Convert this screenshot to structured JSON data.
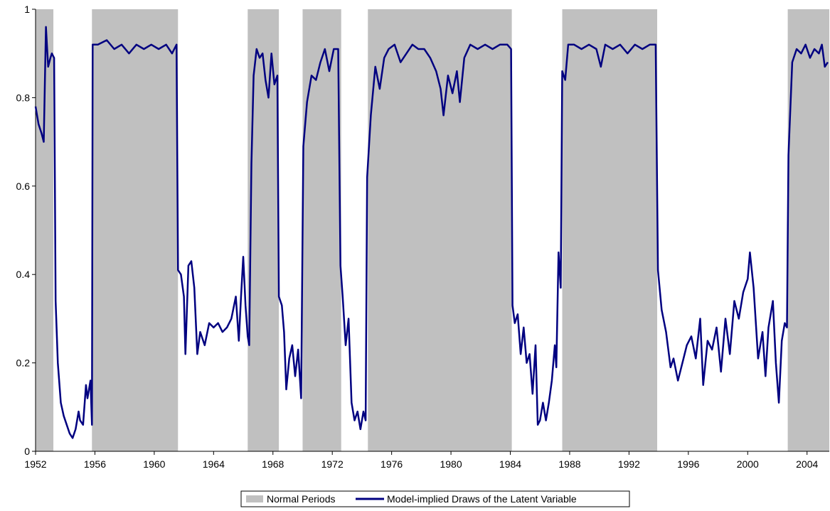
{
  "chart_data": {
    "type": "line",
    "title": "",
    "xlabel": "",
    "ylabel": "",
    "xlim": [
      1952,
      2005.5
    ],
    "ylim": [
      0,
      1
    ],
    "x_ticks": [
      1952,
      1956,
      1960,
      1964,
      1968,
      1972,
      1976,
      1980,
      1984,
      1988,
      1992,
      1996,
      2000,
      2004
    ],
    "x_tick_labels": [
      "1952",
      "1956",
      "1960",
      "1964",
      "1968",
      "1972",
      "1976",
      "1980",
      "1984",
      "1988",
      "1992",
      "1996",
      "2000",
      "2004"
    ],
    "y_ticks": [
      0,
      0.2,
      0.4,
      0.6,
      0.8,
      1
    ],
    "y_tick_labels": [
      "0",
      "0.2",
      "0.4",
      "0.6",
      "0.8",
      "1"
    ],
    "grid": false,
    "legend_position": "bottom-center",
    "shaded_series": {
      "name": "Normal Periods",
      "color": "#c0c0c0",
      "periods": [
        [
          1952.0,
          1953.2
        ],
        [
          1955.8,
          1961.6
        ],
        [
          1966.3,
          1968.4
        ],
        [
          1970.0,
          1972.6
        ],
        [
          1974.4,
          1984.1
        ],
        [
          1987.5,
          1993.9
        ],
        [
          2002.7,
          2005.5
        ]
      ]
    },
    "series": [
      {
        "name": "Model-implied Draws of the Latent Variable",
        "color": "#000080",
        "points": [
          [
            1952.0,
            0.78
          ],
          [
            1952.2,
            0.74
          ],
          [
            1952.4,
            0.72
          ],
          [
            1952.55,
            0.7
          ],
          [
            1952.7,
            0.96
          ],
          [
            1952.85,
            0.87
          ],
          [
            1953.0,
            0.89
          ],
          [
            1953.1,
            0.9
          ],
          [
            1953.25,
            0.89
          ],
          [
            1953.35,
            0.34
          ],
          [
            1953.5,
            0.2
          ],
          [
            1953.7,
            0.11
          ],
          [
            1953.9,
            0.08
          ],
          [
            1954.1,
            0.06
          ],
          [
            1954.3,
            0.04
          ],
          [
            1954.5,
            0.03
          ],
          [
            1954.7,
            0.05
          ],
          [
            1954.9,
            0.09
          ],
          [
            1955.0,
            0.07
          ],
          [
            1955.2,
            0.06
          ],
          [
            1955.4,
            0.15
          ],
          [
            1955.5,
            0.12
          ],
          [
            1955.7,
            0.16
          ],
          [
            1955.8,
            0.06
          ],
          [
            1955.85,
            0.92
          ],
          [
            1956.2,
            0.92
          ],
          [
            1956.8,
            0.93
          ],
          [
            1957.3,
            0.91
          ],
          [
            1957.8,
            0.92
          ],
          [
            1958.3,
            0.9
          ],
          [
            1958.8,
            0.92
          ],
          [
            1959.3,
            0.91
          ],
          [
            1959.8,
            0.92
          ],
          [
            1960.3,
            0.91
          ],
          [
            1960.8,
            0.92
          ],
          [
            1961.2,
            0.9
          ],
          [
            1961.5,
            0.92
          ],
          [
            1961.6,
            0.41
          ],
          [
            1961.8,
            0.4
          ],
          [
            1962.0,
            0.35
          ],
          [
            1962.1,
            0.22
          ],
          [
            1962.3,
            0.42
          ],
          [
            1962.5,
            0.43
          ],
          [
            1962.7,
            0.37
          ],
          [
            1962.9,
            0.22
          ],
          [
            1963.1,
            0.27
          ],
          [
            1963.4,
            0.24
          ],
          [
            1963.7,
            0.29
          ],
          [
            1964.0,
            0.28
          ],
          [
            1964.3,
            0.29
          ],
          [
            1964.6,
            0.27
          ],
          [
            1964.9,
            0.28
          ],
          [
            1965.2,
            0.3
          ],
          [
            1965.5,
            0.35
          ],
          [
            1965.7,
            0.25
          ],
          [
            1965.85,
            0.35
          ],
          [
            1966.0,
            0.44
          ],
          [
            1966.15,
            0.33
          ],
          [
            1966.3,
            0.26
          ],
          [
            1966.4,
            0.24
          ],
          [
            1966.55,
            0.65
          ],
          [
            1966.7,
            0.85
          ],
          [
            1966.9,
            0.91
          ],
          [
            1967.1,
            0.89
          ],
          [
            1967.3,
            0.9
          ],
          [
            1967.5,
            0.84
          ],
          [
            1967.7,
            0.8
          ],
          [
            1967.9,
            0.9
          ],
          [
            1968.1,
            0.83
          ],
          [
            1968.3,
            0.85
          ],
          [
            1968.4,
            0.35
          ],
          [
            1968.6,
            0.33
          ],
          [
            1968.75,
            0.27
          ],
          [
            1968.9,
            0.14
          ],
          [
            1969.1,
            0.21
          ],
          [
            1969.3,
            0.24
          ],
          [
            1969.5,
            0.17
          ],
          [
            1969.7,
            0.23
          ],
          [
            1969.9,
            0.12
          ],
          [
            1970.05,
            0.69
          ],
          [
            1970.3,
            0.79
          ],
          [
            1970.6,
            0.85
          ],
          [
            1970.9,
            0.84
          ],
          [
            1971.2,
            0.88
          ],
          [
            1971.5,
            0.91
          ],
          [
            1971.8,
            0.86
          ],
          [
            1972.1,
            0.91
          ],
          [
            1972.4,
            0.91
          ],
          [
            1972.55,
            0.42
          ],
          [
            1972.7,
            0.35
          ],
          [
            1972.9,
            0.24
          ],
          [
            1973.1,
            0.3
          ],
          [
            1973.3,
            0.11
          ],
          [
            1973.5,
            0.07
          ],
          [
            1973.7,
            0.09
          ],
          [
            1973.9,
            0.05
          ],
          [
            1974.1,
            0.09
          ],
          [
            1974.25,
            0.07
          ],
          [
            1974.35,
            0.62
          ],
          [
            1974.6,
            0.76
          ],
          [
            1974.9,
            0.87
          ],
          [
            1975.2,
            0.82
          ],
          [
            1975.5,
            0.89
          ],
          [
            1975.8,
            0.91
          ],
          [
            1976.2,
            0.92
          ],
          [
            1976.6,
            0.88
          ],
          [
            1977.0,
            0.9
          ],
          [
            1977.4,
            0.92
          ],
          [
            1977.8,
            0.91
          ],
          [
            1978.2,
            0.91
          ],
          [
            1978.6,
            0.89
          ],
          [
            1979.0,
            0.86
          ],
          [
            1979.3,
            0.82
          ],
          [
            1979.5,
            0.76
          ],
          [
            1979.8,
            0.85
          ],
          [
            1980.1,
            0.81
          ],
          [
            1980.4,
            0.86
          ],
          [
            1980.6,
            0.79
          ],
          [
            1980.9,
            0.89
          ],
          [
            1981.3,
            0.92
          ],
          [
            1981.8,
            0.91
          ],
          [
            1982.3,
            0.92
          ],
          [
            1982.8,
            0.91
          ],
          [
            1983.3,
            0.92
          ],
          [
            1983.8,
            0.92
          ],
          [
            1984.05,
            0.91
          ],
          [
            1984.15,
            0.33
          ],
          [
            1984.3,
            0.29
          ],
          [
            1984.5,
            0.31
          ],
          [
            1984.7,
            0.22
          ],
          [
            1984.9,
            0.28
          ],
          [
            1985.1,
            0.2
          ],
          [
            1985.3,
            0.22
          ],
          [
            1985.5,
            0.13
          ],
          [
            1985.7,
            0.24
          ],
          [
            1985.85,
            0.06
          ],
          [
            1986.0,
            0.07
          ],
          [
            1986.2,
            0.11
          ],
          [
            1986.4,
            0.07
          ],
          [
            1986.6,
            0.11
          ],
          [
            1986.8,
            0.16
          ],
          [
            1987.0,
            0.24
          ],
          [
            1987.1,
            0.19
          ],
          [
            1987.25,
            0.45
          ],
          [
            1987.4,
            0.37
          ],
          [
            1987.5,
            0.86
          ],
          [
            1987.7,
            0.84
          ],
          [
            1987.9,
            0.92
          ],
          [
            1988.3,
            0.92
          ],
          [
            1988.8,
            0.91
          ],
          [
            1989.3,
            0.92
          ],
          [
            1989.8,
            0.91
          ],
          [
            1990.1,
            0.87
          ],
          [
            1990.4,
            0.92
          ],
          [
            1990.9,
            0.91
          ],
          [
            1991.4,
            0.92
          ],
          [
            1991.9,
            0.9
          ],
          [
            1992.4,
            0.92
          ],
          [
            1992.9,
            0.91
          ],
          [
            1993.4,
            0.92
          ],
          [
            1993.8,
            0.92
          ],
          [
            1993.95,
            0.41
          ],
          [
            1994.2,
            0.32
          ],
          [
            1994.5,
            0.27
          ],
          [
            1994.8,
            0.19
          ],
          [
            1995.0,
            0.21
          ],
          [
            1995.3,
            0.16
          ],
          [
            1995.6,
            0.2
          ],
          [
            1995.9,
            0.24
          ],
          [
            1996.2,
            0.26
          ],
          [
            1996.5,
            0.21
          ],
          [
            1996.8,
            0.3
          ],
          [
            1997.0,
            0.15
          ],
          [
            1997.3,
            0.25
          ],
          [
            1997.6,
            0.23
          ],
          [
            1997.9,
            0.28
          ],
          [
            1998.2,
            0.18
          ],
          [
            1998.5,
            0.3
          ],
          [
            1998.8,
            0.22
          ],
          [
            1999.1,
            0.34
          ],
          [
            1999.4,
            0.3
          ],
          [
            1999.7,
            0.36
          ],
          [
            2000.0,
            0.39
          ],
          [
            2000.15,
            0.45
          ],
          [
            2000.4,
            0.37
          ],
          [
            2000.7,
            0.21
          ],
          [
            2001.0,
            0.27
          ],
          [
            2001.2,
            0.17
          ],
          [
            2001.4,
            0.28
          ],
          [
            2001.7,
            0.34
          ],
          [
            2001.9,
            0.2
          ],
          [
            2002.1,
            0.11
          ],
          [
            2002.3,
            0.25
          ],
          [
            2002.5,
            0.29
          ],
          [
            2002.65,
            0.28
          ],
          [
            2002.75,
            0.67
          ],
          [
            2003.0,
            0.88
          ],
          [
            2003.3,
            0.91
          ],
          [
            2003.6,
            0.9
          ],
          [
            2003.9,
            0.92
          ],
          [
            2004.2,
            0.89
          ],
          [
            2004.5,
            0.91
          ],
          [
            2004.8,
            0.9
          ],
          [
            2005.0,
            0.92
          ],
          [
            2005.2,
            0.87
          ],
          [
            2005.4,
            0.88
          ]
        ]
      }
    ]
  }
}
